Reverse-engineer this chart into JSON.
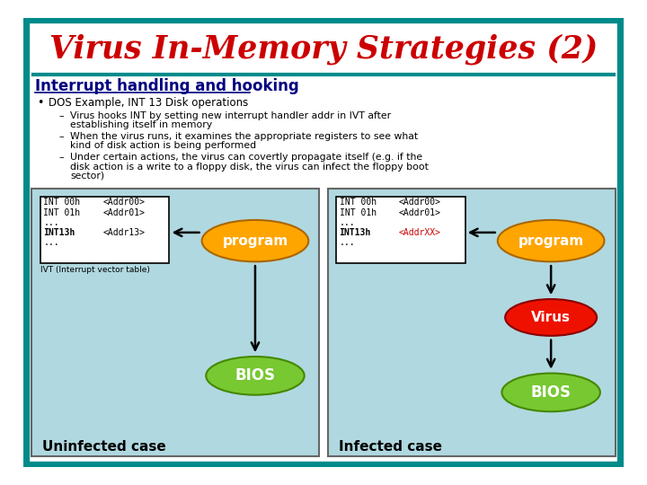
{
  "title": "Virus In-Memory Strategies (2)",
  "title_color": "#cc0000",
  "bg_color": "#ffffff",
  "border_color": "#008b8b",
  "header_line_color": "#008b8b",
  "section_heading": "Interrupt handling and hooking",
  "section_heading_color": "#000080",
  "bullet": "DOS Example, INT 13 Disk operations",
  "sub_bullet_1a": "Virus hooks INT by setting new interrupt handler addr in IVT after",
  "sub_bullet_1b": "establishing itself in memory",
  "sub_bullet_2a": "When the virus runs, it examines the appropriate registers to see what",
  "sub_bullet_2b": "kind of disk action is being performed",
  "sub_bullet_3a": "Under certain actions, the virus can covertly propagate itself (e.g. if the",
  "sub_bullet_3b": "disk action is a write to a floppy disk, the virus can infect the floppy boot",
  "sub_bullet_3c": "sector)",
  "diagram_bg": "#b0d8e0",
  "program_color": "#ffa500",
  "program_label": "program",
  "bios_color": "#78c832",
  "bios_label": "BIOS",
  "virus_color": "#ee1100",
  "virus_label": "Virus",
  "uninfected_label": "Uninfected case",
  "infected_label": "Infected case",
  "ivt_label": "IVT (Interrupt vector table)",
  "addr13_infected_color": "#cc0000",
  "addr13_normal_color": "#000000"
}
